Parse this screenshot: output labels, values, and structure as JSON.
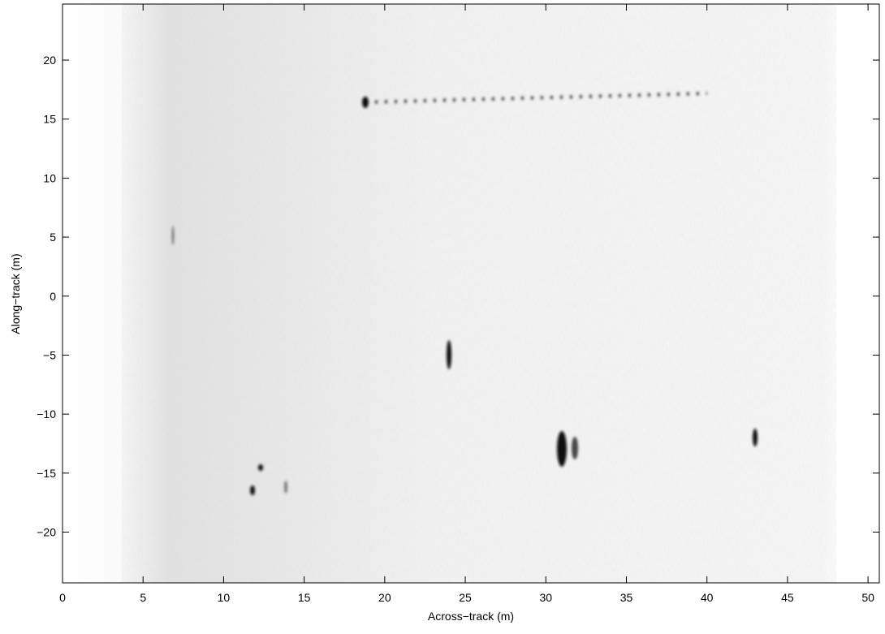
{
  "chart_data": {
    "type": "image",
    "x_label": "Across−track (m)",
    "y_label": "Along−track (m)",
    "xlim": [
      0,
      50.7
    ],
    "ylim": [
      -24.3,
      24.75
    ],
    "xticks": [
      0,
      5,
      10,
      15,
      20,
      25,
      30,
      35,
      40,
      45,
      50
    ],
    "yticks": [
      {
        "value": -20,
        "label": "−20"
      },
      {
        "value": -15,
        "label": "−15"
      },
      {
        "value": -10,
        "label": "−10"
      },
      {
        "value": -5,
        "label": "−5"
      },
      0,
      5,
      10,
      15,
      20
    ],
    "colormap": "gray"
  }
}
